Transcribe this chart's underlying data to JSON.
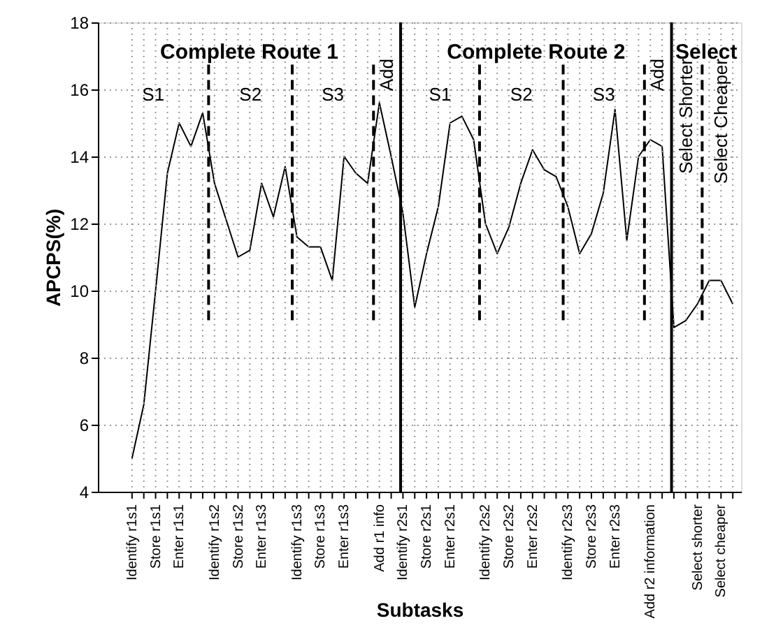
{
  "chart_data": {
    "type": "line",
    "xlabel": "Subtasks",
    "ylabel": "APCPS(%)",
    "categories": [
      "Identify r1s1",
      null,
      "Store r1s1",
      null,
      "Enter r1s1",
      null,
      null,
      "Identify r1s2",
      null,
      "Store r1s2",
      null,
      "Enter r1s3",
      null,
      null,
      "Identify r1s3",
      null,
      "Store r1s3",
      null,
      "Enter r1s3",
      null,
      null,
      "Add r1 info",
      null,
      "Identify r2s1",
      null,
      "Store r2s1",
      null,
      "Enter r2s1",
      null,
      null,
      "Identify r2s2",
      null,
      "Store r2s2",
      null,
      "Enter r2s2",
      null,
      null,
      "Identify r2s3",
      null,
      "Store r2s3",
      null,
      "Enter r2s3",
      null,
      null,
      "Add r2 information",
      null,
      null,
      null,
      "Select shorter",
      null,
      "Select cheaper",
      null
    ],
    "series": [
      {
        "color": "#000000",
        "values": [
          5.0,
          6.6,
          10.0,
          13.5,
          15.0,
          14.3,
          15.3,
          13.2,
          12.1,
          11.0,
          11.2,
          13.2,
          12.2,
          13.7,
          11.6,
          11.3,
          11.3,
          10.3,
          14.0,
          13.5,
          13.2,
          15.6,
          14.0,
          12.3,
          9.5,
          11.1,
          12.5,
          15.0,
          15.2,
          14.5,
          12.0,
          11.1,
          11.9,
          13.2,
          14.2,
          13.6,
          13.4,
          12.5,
          11.1,
          11.7,
          12.9,
          15.4,
          11.5,
          14.0,
          14.5,
          14.3,
          8.9,
          9.1,
          9.6,
          10.3,
          10.3,
          9.6
        ]
      }
    ],
    "ylim": [
      4,
      18
    ],
    "yticks": [
      4,
      6,
      8,
      10,
      12,
      14,
      16,
      18
    ],
    "grid": true,
    "marker": "none",
    "line_style": "solid",
    "annotations": [
      "Complete Route 1",
      "Complete Route 2",
      "Select",
      "S1",
      "S2",
      "S3",
      "Add",
      "S1",
      "S2",
      "S3",
      "Add",
      "Select Shorter",
      "Select Cheaper"
    ]
  }
}
